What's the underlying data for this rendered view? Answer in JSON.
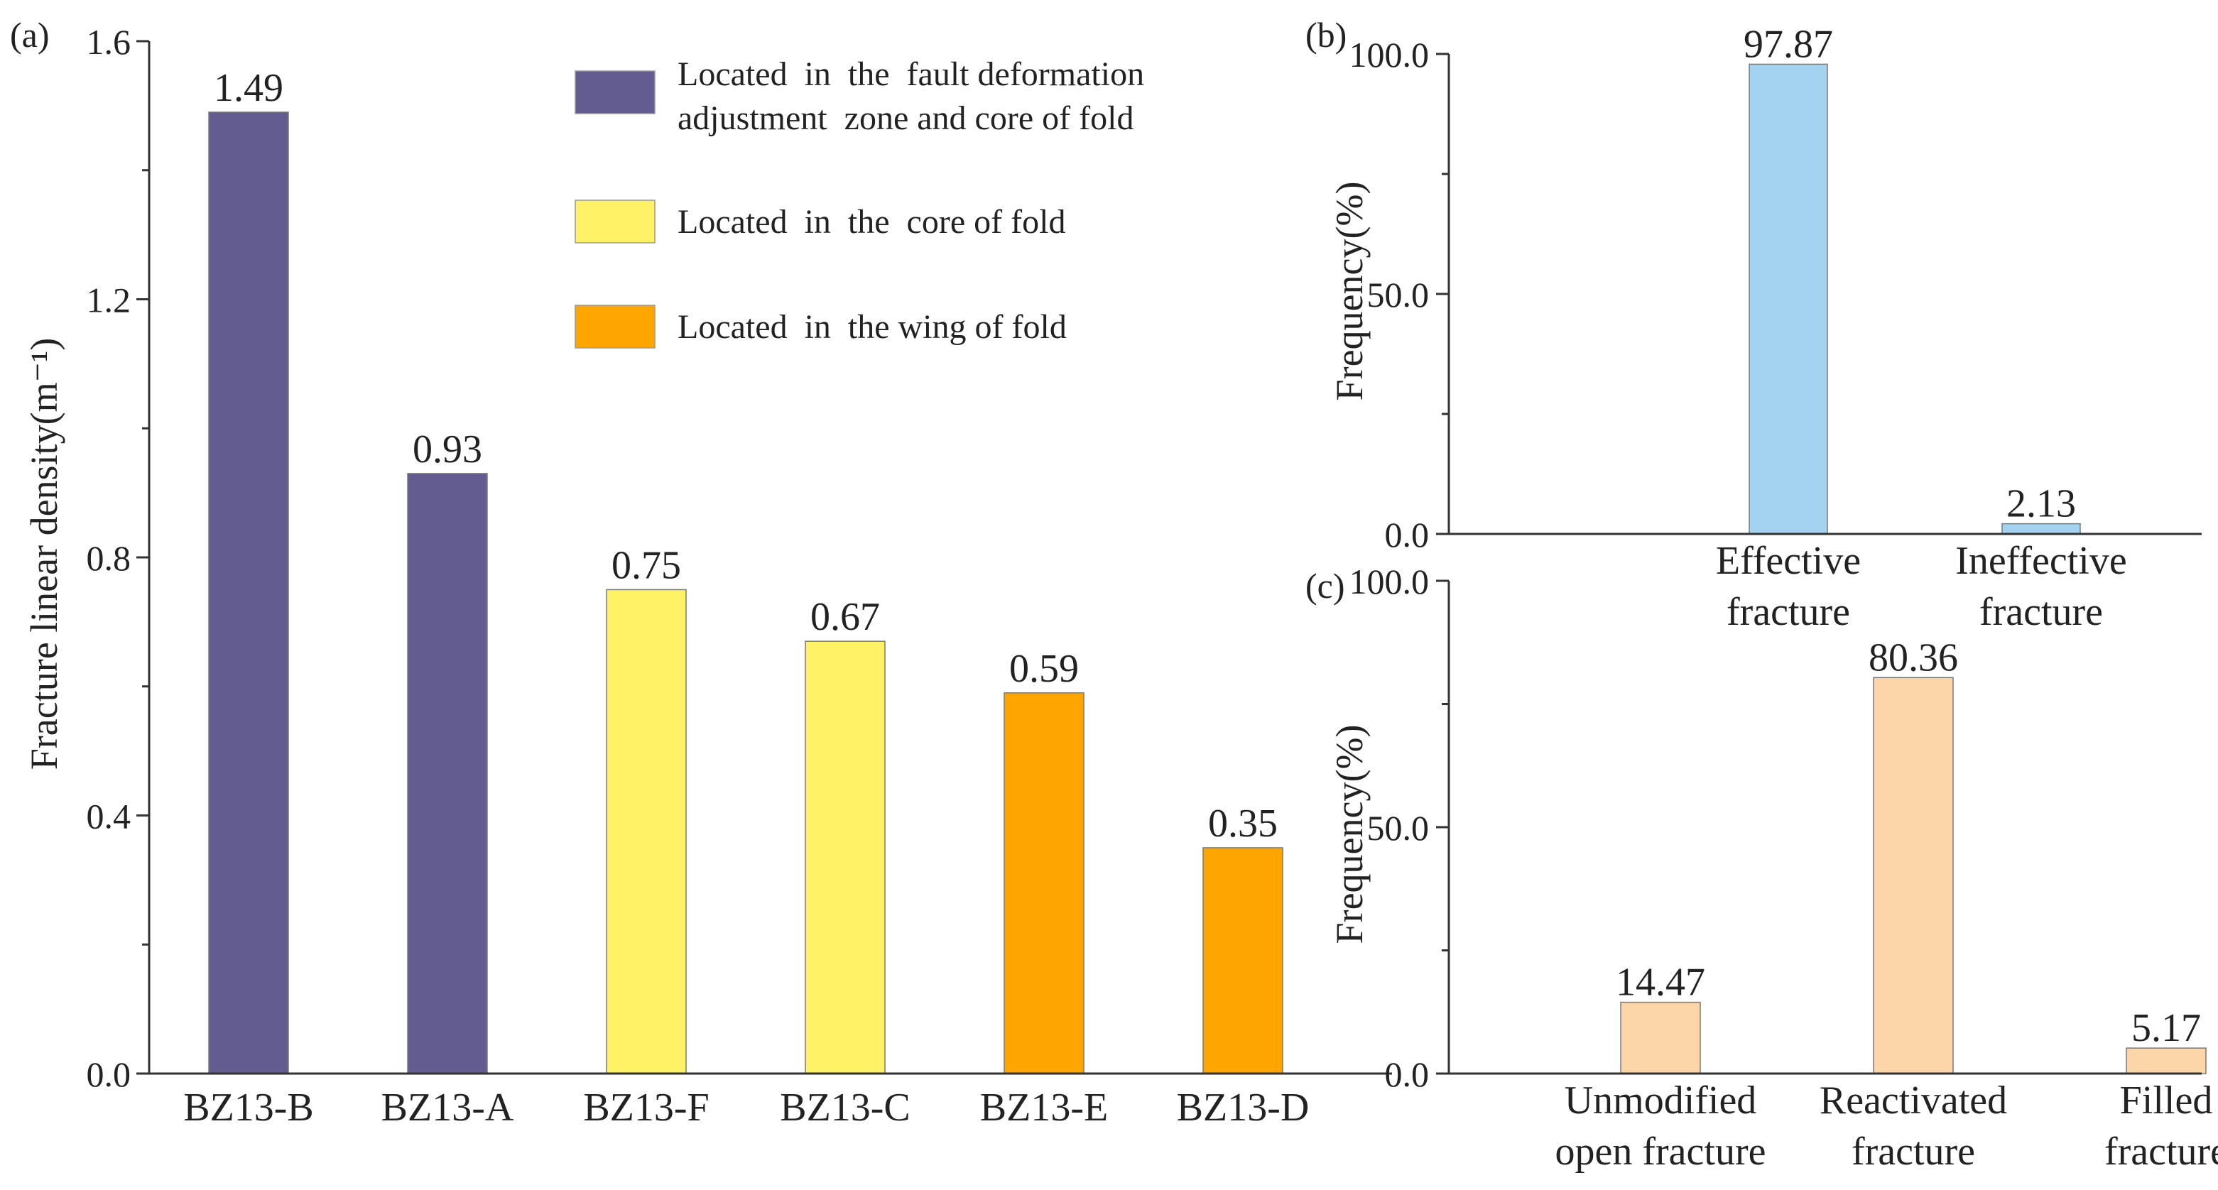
{
  "chart_data": [
    {
      "id": "a",
      "type": "bar",
      "panel_label": "(a)",
      "ylabel": "Fracture linear density(m⁻¹)",
      "ylim": [
        0,
        1.6
      ],
      "yticks": [
        0.0,
        0.4,
        0.8,
        1.2,
        1.6
      ],
      "ytick_labels": [
        "0.0",
        "0.4",
        "0.8",
        "1.2",
        "1.6"
      ],
      "categories": [
        "BZ13-B",
        "BZ13-A",
        "BZ13-F",
        "BZ13-C",
        "BZ13-E",
        "BZ13-D"
      ],
      "values": [
        1.49,
        0.93,
        0.75,
        0.67,
        0.59,
        0.35
      ],
      "value_labels": [
        "1.49",
        "0.93",
        "0.75",
        "0.67",
        "0.59",
        "0.35"
      ],
      "bar_groups": [
        0,
        0,
        1,
        1,
        2,
        2
      ],
      "legend": [
        {
          "lines": [
            "Located  in  the  fault deformation",
            "adjustment  zone and core of fold"
          ],
          "color": "#635C90"
        },
        {
          "lines": [
            "Located  in  the  core of fold"
          ],
          "color": "#FFF266"
        },
        {
          "lines": [
            "Located  in  the wing of fold"
          ],
          "color": "#FFA500"
        }
      ]
    },
    {
      "id": "b",
      "type": "bar",
      "panel_label": "(b)",
      "ylabel": "Frequency(%)",
      "ylim": [
        0,
        100
      ],
      "yticks": [
        0,
        50,
        100
      ],
      "ytick_labels": [
        "0.0",
        "50.0",
        "100.0"
      ],
      "minor_yticks": [
        25,
        75
      ],
      "categories": [
        [
          "Effective",
          "fracture"
        ],
        [
          "Ineffective",
          "fracture"
        ]
      ],
      "values": [
        97.87,
        2.13
      ],
      "value_labels": [
        "97.87",
        "2.13"
      ],
      "color": "#A3D3F0"
    },
    {
      "id": "c",
      "type": "bar",
      "panel_label": "(c)",
      "ylabel": "Frequency(%)",
      "ylim": [
        0,
        100
      ],
      "yticks": [
        0,
        50,
        100
      ],
      "ytick_labels": [
        "0.0",
        "50.0",
        "100.0"
      ],
      "minor_yticks": [
        25,
        75
      ],
      "categories": [
        [
          "Unmodified",
          "open fracture"
        ],
        [
          "Reactivated",
          "fracture"
        ],
        [
          "Filled",
          "fracture"
        ]
      ],
      "values": [
        14.47,
        80.36,
        5.17
      ],
      "value_labels": [
        "14.47",
        "80.36",
        "5.17"
      ],
      "color": "#FCD5A8"
    }
  ]
}
